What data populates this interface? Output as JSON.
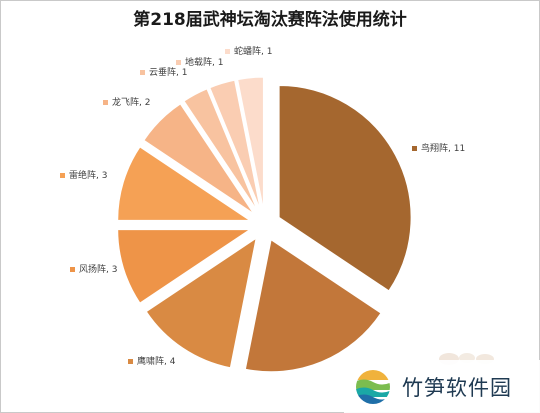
{
  "chart_data": {
    "type": "pie",
    "title": "第218届武神坛淘汰赛阵法使用统计",
    "exploded": true,
    "slices": [
      {
        "label": "鸟翔阵, 11",
        "name": "鸟翔阵",
        "value": 11,
        "color": "#a5672f"
      },
      {
        "label": "",
        "name": "",
        "value": 6,
        "color": "#c2773a"
      },
      {
        "label": "鹰啸阵, 4",
        "name": "鹰啸阵",
        "value": 4,
        "color": "#d98a43"
      },
      {
        "label": "风扬阵, 3",
        "name": "风扬阵",
        "value": 3,
        "color": "#ee9448"
      },
      {
        "label": "雷绝阵, 3",
        "name": "雷绝阵",
        "value": 3,
        "color": "#f5a155"
      },
      {
        "label": "龙飞阵, 2",
        "name": "龙飞阵",
        "value": 2,
        "color": "#f6b487"
      },
      {
        "label": "云垂阵, 1",
        "name": "云垂阵",
        "value": 1,
        "color": "#f8c3a0"
      },
      {
        "label": "地载阵, 1",
        "name": "地载阵",
        "value": 1,
        "color": "#facdb2"
      },
      {
        "label": "蛇蟠阵, 1",
        "name": "蛇蟠阵",
        "value": 1,
        "color": "#fcdccb"
      }
    ]
  },
  "watermark": {
    "text": "竹笋软件园"
  }
}
